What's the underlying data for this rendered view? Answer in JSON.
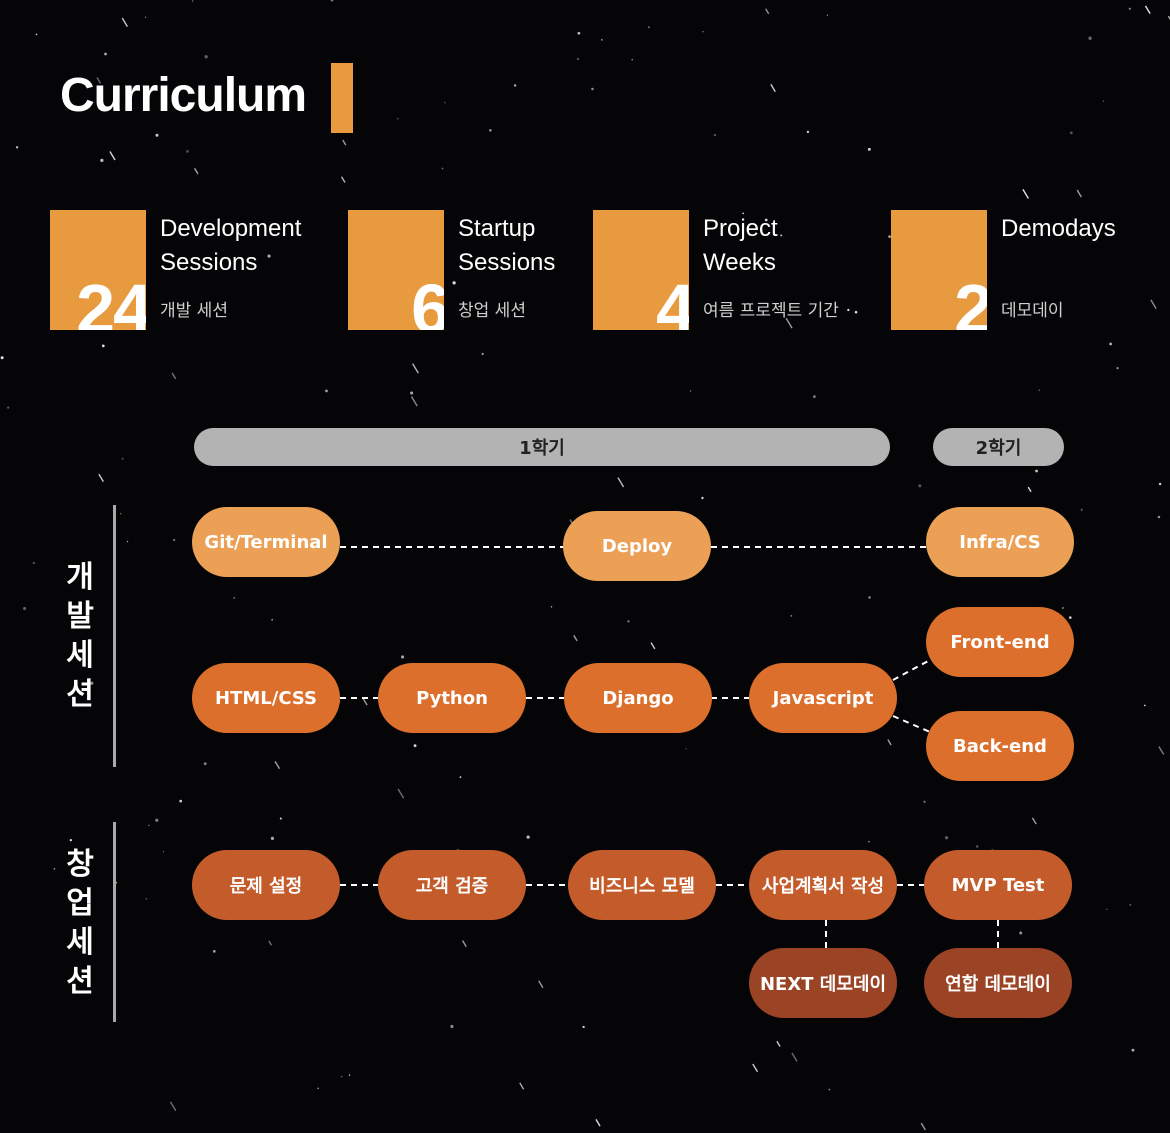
{
  "title": "Curriculum",
  "colors": {
    "accent": "#e89a3e",
    "light": "#eba055",
    "mid": "#dc6f2c",
    "deep": "#c45b2b",
    "dark": "#9a4425",
    "bar": "#b3b3b3"
  },
  "stats": [
    {
      "number": "24",
      "en_line1": "Development",
      "en_line2": "Sessions",
      "ko": "개발 세션"
    },
    {
      "number": "6",
      "en_line1": "Startup",
      "en_line2": "Sessions",
      "ko": "창업 세션"
    },
    {
      "number": "4",
      "en_line1": "Project",
      "en_line2": "Weeks",
      "ko": "여름 프로젝트 기간"
    },
    {
      "number": "2",
      "en_line1": "Demodays",
      "en_line2": "",
      "ko": "데모데이"
    }
  ],
  "phases": {
    "semester1": "1학기",
    "semester2": "2학기"
  },
  "tracks": {
    "dev": "개\n발\n세\n션",
    "startup": "창\n업\n세\n션"
  },
  "dev": {
    "git": "Git/Terminal",
    "deploy": "Deploy",
    "infra": "Infra/CS",
    "html": "HTML/CSS",
    "python": "Python",
    "django": "Django",
    "javascript": "Javascript",
    "frontend": "Front-end",
    "backend": "Back-end"
  },
  "startup": {
    "problem": "문제 설정",
    "customer": "고객 검증",
    "model": "비즈니스 모델",
    "plan": "사업계획서 작성",
    "mvp": "MVP Test",
    "next_demo": "NEXT 데모데이",
    "joint_demo": "연합 데모데이"
  }
}
